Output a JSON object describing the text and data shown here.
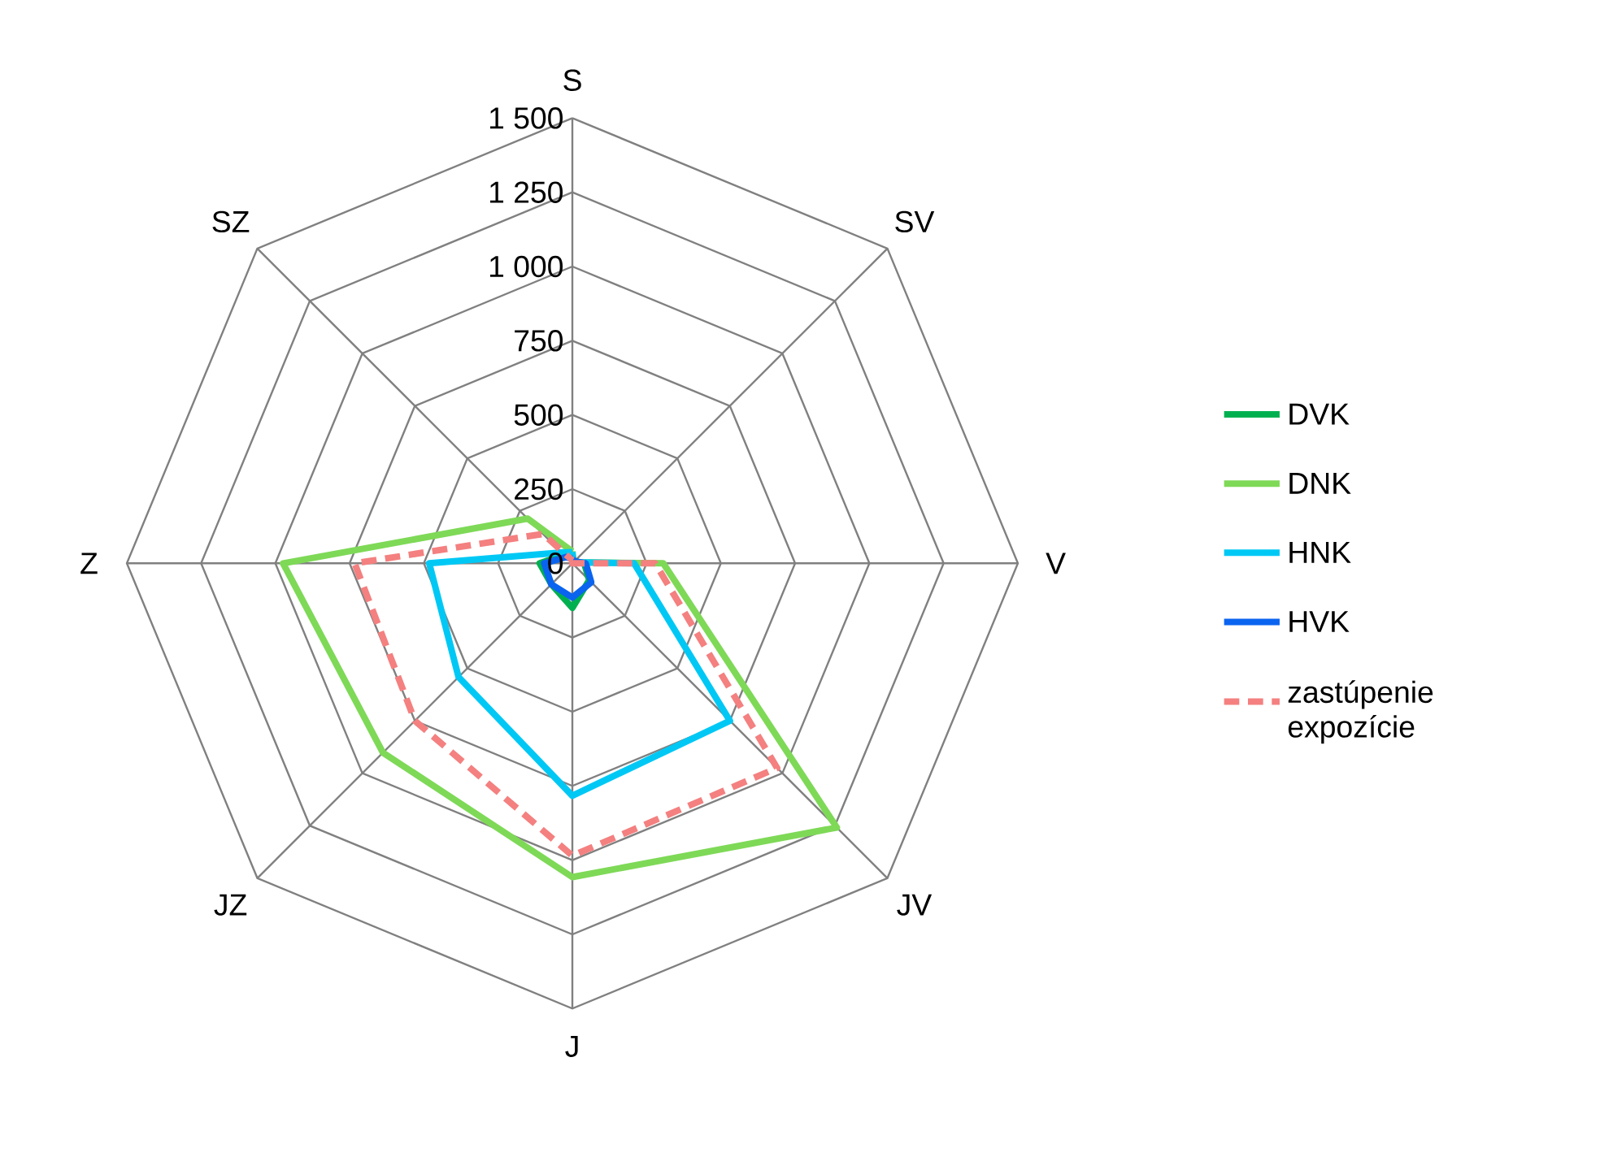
{
  "chart_data": {
    "type": "radar",
    "categories": [
      "S",
      "SV",
      "V",
      "JV",
      "J",
      "JZ",
      "Z",
      "SZ"
    ],
    "ylim": [
      0,
      1500
    ],
    "yticks": [
      0,
      250,
      500,
      750,
      {
        "value": 1000,
        "label": "1 000"
      },
      {
        "value": 1250,
        "label": "1 250"
      },
      {
        "value": 1500,
        "label": "1 500"
      }
    ],
    "grid": true,
    "legend": "right",
    "series": [
      {
        "name": "DVK",
        "color": "#00b050",
        "values": [
          15,
          10,
          40,
          80,
          150,
          100,
          110,
          40
        ]
      },
      {
        "name": "DNK",
        "color": "#7ed957",
        "values": [
          40,
          5,
          306,
          1259,
          1057,
          902,
          974,
          213
        ]
      },
      {
        "name": "HNK",
        "color": "#00c8f5",
        "values": [
          38,
          5,
          208,
          750,
          783,
          542,
          482,
          52
        ]
      },
      {
        "name": "HVK",
        "color": "#0a64f0",
        "values": [
          15,
          10,
          45,
          90,
          115,
          100,
          95,
          30
        ]
      },
      {
        "name": "zastúpenie expozície",
        "color": "#f48080",
        "line_style": "dashed",
        "values": [
          10,
          0,
          279,
          975,
          985,
          750,
          733,
          140
        ]
      }
    ]
  }
}
